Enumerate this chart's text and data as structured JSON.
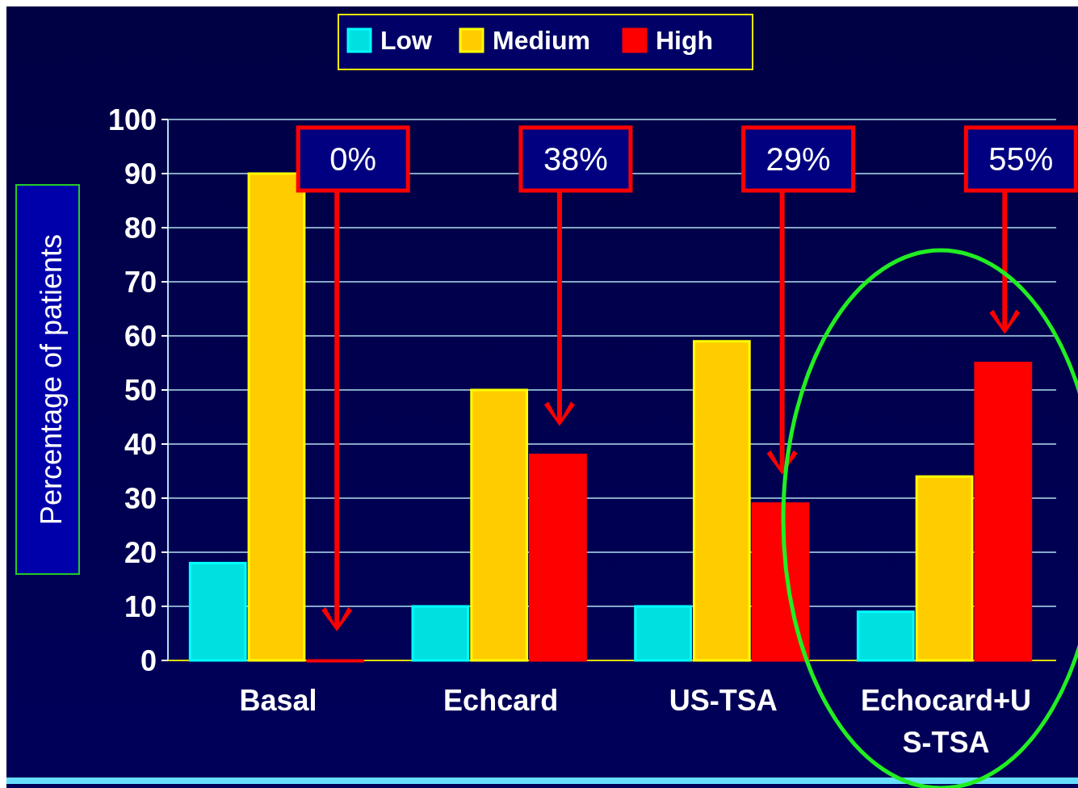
{
  "chart_data": {
    "type": "bar",
    "ylabel": "Percentage of patients",
    "categories": [
      "Basal",
      "Echcard",
      "US-TSA",
      "Echocard+US-TSA"
    ],
    "series": [
      {
        "name": "Low",
        "color": "#00e0e0",
        "values": [
          18,
          10,
          10,
          9
        ]
      },
      {
        "name": "Medium",
        "color": "#ffcc00",
        "values": [
          90,
          50,
          59,
          34
        ]
      },
      {
        "name": "High",
        "color": "#ff0000",
        "values": [
          0,
          38,
          29,
          55
        ]
      }
    ],
    "ylim": [
      0,
      100
    ],
    "yticks": [
      0,
      10,
      20,
      30,
      40,
      50,
      60,
      70,
      80,
      90,
      100
    ],
    "grid": "y",
    "legend": "top",
    "annotations": [
      "0%",
      "38%",
      "29%",
      "55%"
    ]
  }
}
